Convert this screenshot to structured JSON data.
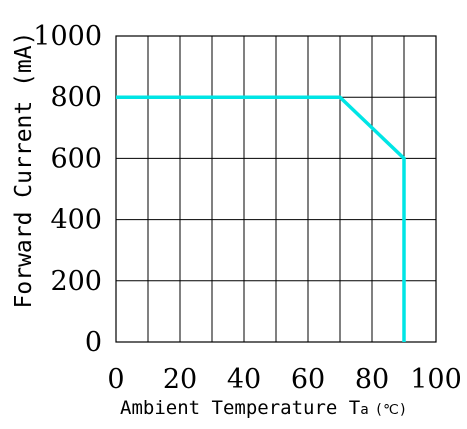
{
  "chart_data": {
    "type": "line",
    "title": "",
    "xlabel": "Ambient Temperature Ta (℃)",
    "xlabel_parts": {
      "main": "Ambient Temperature T",
      "sub": "a",
      "unit": "(℃)"
    },
    "ylabel": "Forward Current (mA)",
    "xlim": [
      0,
      100
    ],
    "ylim": [
      0,
      1000
    ],
    "grid": true,
    "x_grid_step": 10,
    "y_grid_step": 200,
    "x_tick_labels": [
      "0",
      "20",
      "40",
      "60",
      "80",
      "100"
    ],
    "x_tick_values": [
      0,
      20,
      40,
      60,
      80,
      100
    ],
    "y_tick_labels": [
      "0",
      "200",
      "400",
      "600",
      "800",
      "1000"
    ],
    "y_tick_values": [
      0,
      200,
      400,
      600,
      800,
      1000
    ],
    "series": [
      {
        "x": [
          0,
          70,
          90,
          90
        ],
        "y": [
          800,
          800,
          600,
          0
        ],
        "color": "#00e5e5"
      }
    ]
  }
}
